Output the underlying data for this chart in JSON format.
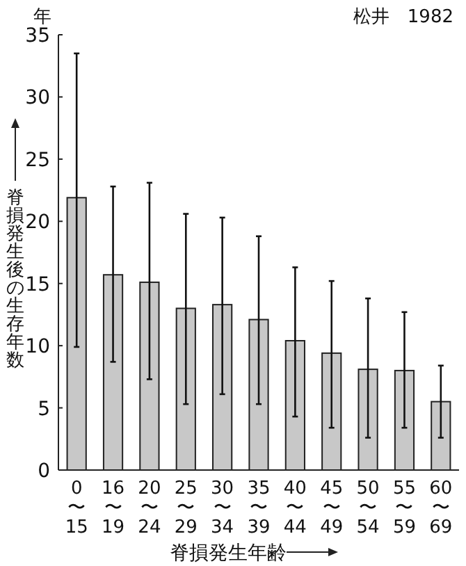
{
  "chart_data": {
    "type": "bar",
    "ylabel": "脊損発生後の生存年数",
    "xlabel": "脊損発生年齢",
    "annotations": [
      "年",
      "松井　1982"
    ],
    "categories": [
      "0〜15",
      "16〜19",
      "20〜24",
      "25〜29",
      "30〜34",
      "35〜39",
      "40〜44",
      "45〜49",
      "50〜54",
      "55〜59",
      "60〜69"
    ],
    "values": [
      21.9,
      15.7,
      15.1,
      13.0,
      13.3,
      12.1,
      10.4,
      9.4,
      8.1,
      8.0,
      5.5
    ],
    "errors": [
      [
        9.9,
        33.5
      ],
      [
        8.7,
        22.8
      ],
      [
        7.3,
        23.1
      ],
      [
        5.3,
        20.6
      ],
      [
        6.1,
        20.3
      ],
      [
        5.3,
        18.8
      ],
      [
        4.3,
        16.3
      ],
      [
        3.4,
        15.2
      ],
      [
        2.6,
        13.8
      ],
      [
        3.4,
        12.7
      ],
      [
        2.6,
        8.4
      ]
    ],
    "color": "#c8c8c8",
    "ylim": [
      0,
      35
    ],
    "yticks": [
      0,
      5,
      10,
      15,
      20,
      25,
      30,
      35
    ],
    "grid": false
  }
}
